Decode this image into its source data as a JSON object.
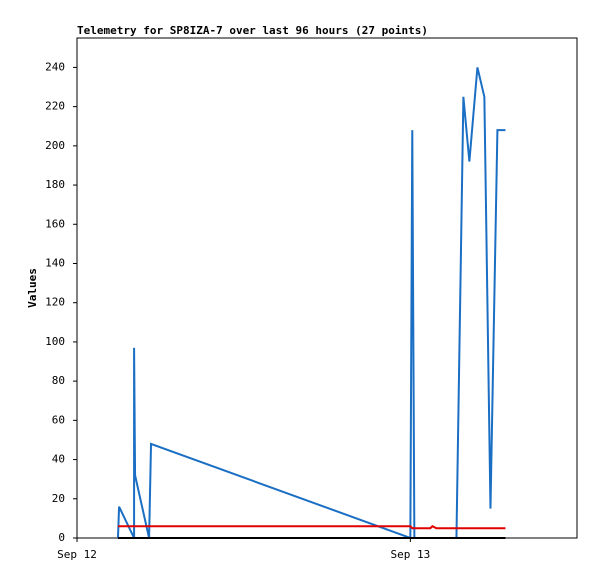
{
  "chart_data": {
    "type": "line",
    "title": "Telemetry for SP8IZA-7 over last 96 hours (27 points)",
    "y_label": "Values",
    "xlim": [
      0,
      36
    ],
    "xticks": [
      {
        "value": 0,
        "label": "Sep 12"
      },
      {
        "value": 24,
        "label": "Sep 13"
      }
    ],
    "ylim": [
      0,
      255
    ],
    "yticks": [
      0,
      20,
      40,
      60,
      80,
      100,
      120,
      140,
      160,
      180,
      200,
      220,
      240
    ],
    "grid": false,
    "series": [
      {
        "color": "#1a6fc4",
        "x": [
          2.95,
          3.03,
          4.11,
          4.11,
          4.18,
          5.19,
          5.33,
          24.0,
          24.14,
          24.29,
          27.32,
          27.82,
          28.25,
          28.83,
          29.33,
          29.77,
          30.27,
          30.85
        ],
        "values": [
          0,
          16,
          0,
          97,
          32,
          0,
          48,
          0,
          208,
          0,
          0,
          225,
          192,
          240,
          225,
          15,
          208,
          208
        ]
      },
      {
        "color": "#e00000",
        "x": [
          2.95,
          24.0,
          24.14,
          25.44,
          25.59,
          25.87,
          30.85
        ],
        "values": [
          6,
          6,
          5,
          5,
          6,
          5,
          5
        ]
      },
      {
        "color": "#000000",
        "x": [
          2.95,
          30.85
        ],
        "values": [
          0,
          0
        ]
      }
    ]
  }
}
